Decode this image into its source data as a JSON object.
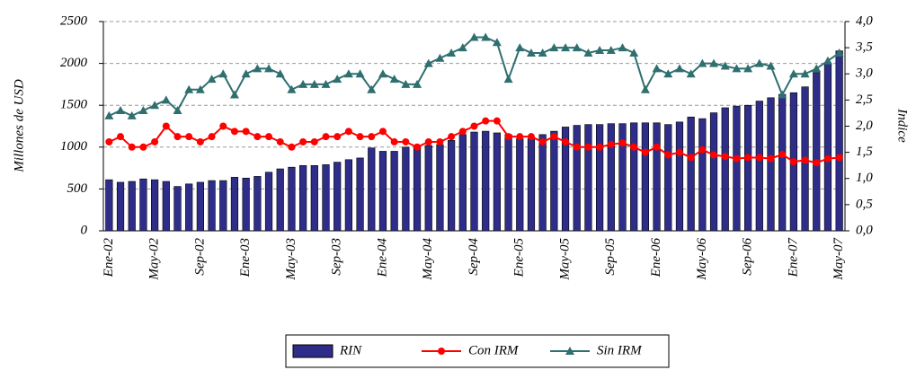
{
  "chart_data": {
    "type": "bar_line",
    "y_label": "Millones de USD",
    "y2_label": "Indice",
    "categories": [
      "Ene-02",
      null,
      null,
      null,
      "May-02",
      null,
      null,
      null,
      "Sep-02",
      null,
      null,
      null,
      "Ene-03",
      null,
      null,
      null,
      "May-03",
      null,
      null,
      null,
      "Sep-03",
      null,
      null,
      null,
      "Ene-04",
      null,
      null,
      null,
      "May-04",
      null,
      null,
      null,
      "Sep-04",
      null,
      null,
      null,
      "Ene-05",
      null,
      null,
      null,
      "May-05",
      null,
      null,
      null,
      "Sep-05",
      null,
      null,
      null,
      "Ene-06",
      null,
      null,
      null,
      "May-06",
      null,
      null,
      null,
      "Sep-06",
      null,
      null,
      null,
      "Ene-07",
      null,
      null,
      null,
      "May-07"
    ],
    "series": [
      {
        "name": "RIN",
        "type": "bar",
        "color": "#2e2e8a",
        "values": [
          610,
          580,
          590,
          620,
          610,
          590,
          530,
          560,
          580,
          600,
          600,
          640,
          630,
          650,
          700,
          740,
          760,
          780,
          780,
          790,
          820,
          850,
          870,
          990,
          950,
          950,
          1000,
          1010,
          1020,
          1030,
          1080,
          1150,
          1180,
          1190,
          1170,
          1150,
          1100,
          1100,
          1150,
          1190,
          1240,
          1260,
          1270,
          1270,
          1280,
          1280,
          1290,
          1290,
          1290,
          1270,
          1300,
          1360,
          1340,
          1410,
          1470,
          1490,
          1500,
          1550,
          1590,
          1630,
          1650,
          1720,
          1890,
          2000,
          2150
        ]
      },
      {
        "name": "Con IRM",
        "type": "line",
        "marker": "circle",
        "axis": "y2",
        "color": "#ff0000",
        "values": [
          1.7,
          1.8,
          1.6,
          1.6,
          1.7,
          2.0,
          1.8,
          1.8,
          1.7,
          1.8,
          2.0,
          1.9,
          1.9,
          1.8,
          1.8,
          1.7,
          1.6,
          1.7,
          1.7,
          1.8,
          1.8,
          1.9,
          1.8,
          1.8,
          1.9,
          1.7,
          1.7,
          1.6,
          1.7,
          1.7,
          1.8,
          1.9,
          2.0,
          2.1,
          2.1,
          1.8,
          1.8,
          1.8,
          1.7,
          1.8,
          1.7,
          1.6,
          1.6,
          1.6,
          1.65,
          1.68,
          1.6,
          1.5,
          1.6,
          1.45,
          1.5,
          1.4,
          1.55,
          1.45,
          1.42,
          1.38,
          1.4,
          1.4,
          1.38,
          1.46,
          1.32,
          1.35,
          1.3,
          1.38,
          1.4
        ]
      },
      {
        "name": "Sin IRM",
        "type": "line",
        "marker": "triangle",
        "axis": "y2",
        "color": "#2f6f6f",
        "values": [
          2.2,
          2.3,
          2.2,
          2.3,
          2.4,
          2.5,
          2.3,
          2.7,
          2.7,
          2.9,
          3.0,
          2.6,
          3.0,
          3.1,
          3.1,
          3.0,
          2.7,
          2.8,
          2.8,
          2.8,
          2.9,
          3.0,
          3.0,
          2.7,
          3.0,
          2.9,
          2.8,
          2.8,
          3.2,
          3.3,
          3.4,
          3.5,
          3.7,
          3.7,
          3.6,
          2.9,
          3.5,
          3.4,
          3.4,
          3.5,
          3.5,
          3.5,
          3.4,
          3.45,
          3.45,
          3.5,
          3.4,
          2.7,
          3.1,
          3.0,
          3.1,
          3.0,
          3.2,
          3.2,
          3.15,
          3.1,
          3.1,
          3.2,
          3.15,
          2.6,
          3.0,
          3.0,
          3.1,
          3.25,
          3.4
        ]
      }
    ],
    "ylim": [
      0,
      2500
    ],
    "yticks": [
      0,
      500,
      1000,
      1500,
      2000,
      2500
    ],
    "y2lim": [
      0,
      4
    ],
    "y2ticks": [
      {
        "value": 0,
        "label": "0,0"
      },
      {
        "value": 0.5,
        "label": "0,5"
      },
      {
        "value": 1,
        "label": "1,0"
      },
      {
        "value": 1.5,
        "label": "1,5"
      },
      {
        "value": 2,
        "label": "2,0"
      },
      {
        "value": 2.5,
        "label": "2,5"
      },
      {
        "value": 3,
        "label": "3,0"
      },
      {
        "value": 3.5,
        "label": "3,5"
      },
      {
        "value": 4,
        "label": "4,0"
      }
    ],
    "grid": true,
    "legend": "bottom"
  }
}
